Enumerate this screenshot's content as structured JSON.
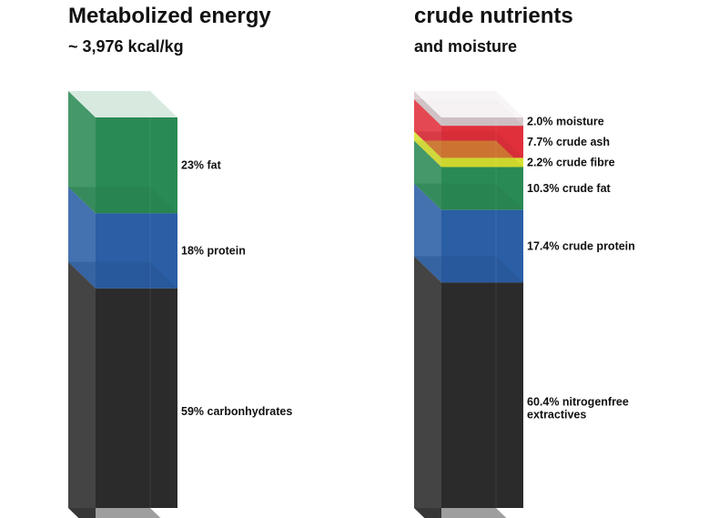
{
  "chart_data": [
    {
      "type": "stacked-bar-3d",
      "title": "Metabolized energy",
      "subtitle": "~ 3,976 kcal/kg",
      "unit": "%",
      "segments": [
        {
          "label": "23% fat",
          "value": 23,
          "color": "#2a8a55"
        },
        {
          "label": "18% protein",
          "value": 18,
          "color": "#2a5ea5"
        },
        {
          "label": "59% carbonhydrates",
          "value": 59,
          "color": "#2b2b2b"
        }
      ]
    },
    {
      "type": "stacked-bar-3d",
      "title": "crude nutrients",
      "subtitle": "and moisture",
      "unit": "%",
      "segments": [
        {
          "label": "2.0% moisture",
          "value": 2.0,
          "color": "#d8c8cc"
        },
        {
          "label": "7.7% crude ash",
          "value": 7.7,
          "color": "#e0303c"
        },
        {
          "label": "2.2% crude fibre",
          "value": 2.2,
          "color": "#d8e030"
        },
        {
          "label": "10.3% crude fat",
          "value": 10.3,
          "color": "#2a8a55"
        },
        {
          "label": "17.4% crude protein",
          "value": 17.4,
          "color": "#2a5ea5"
        },
        {
          "label": "60.4% nitrogenfree extractives",
          "value": 60.4,
          "color": "#2b2b2b"
        }
      ]
    }
  ]
}
